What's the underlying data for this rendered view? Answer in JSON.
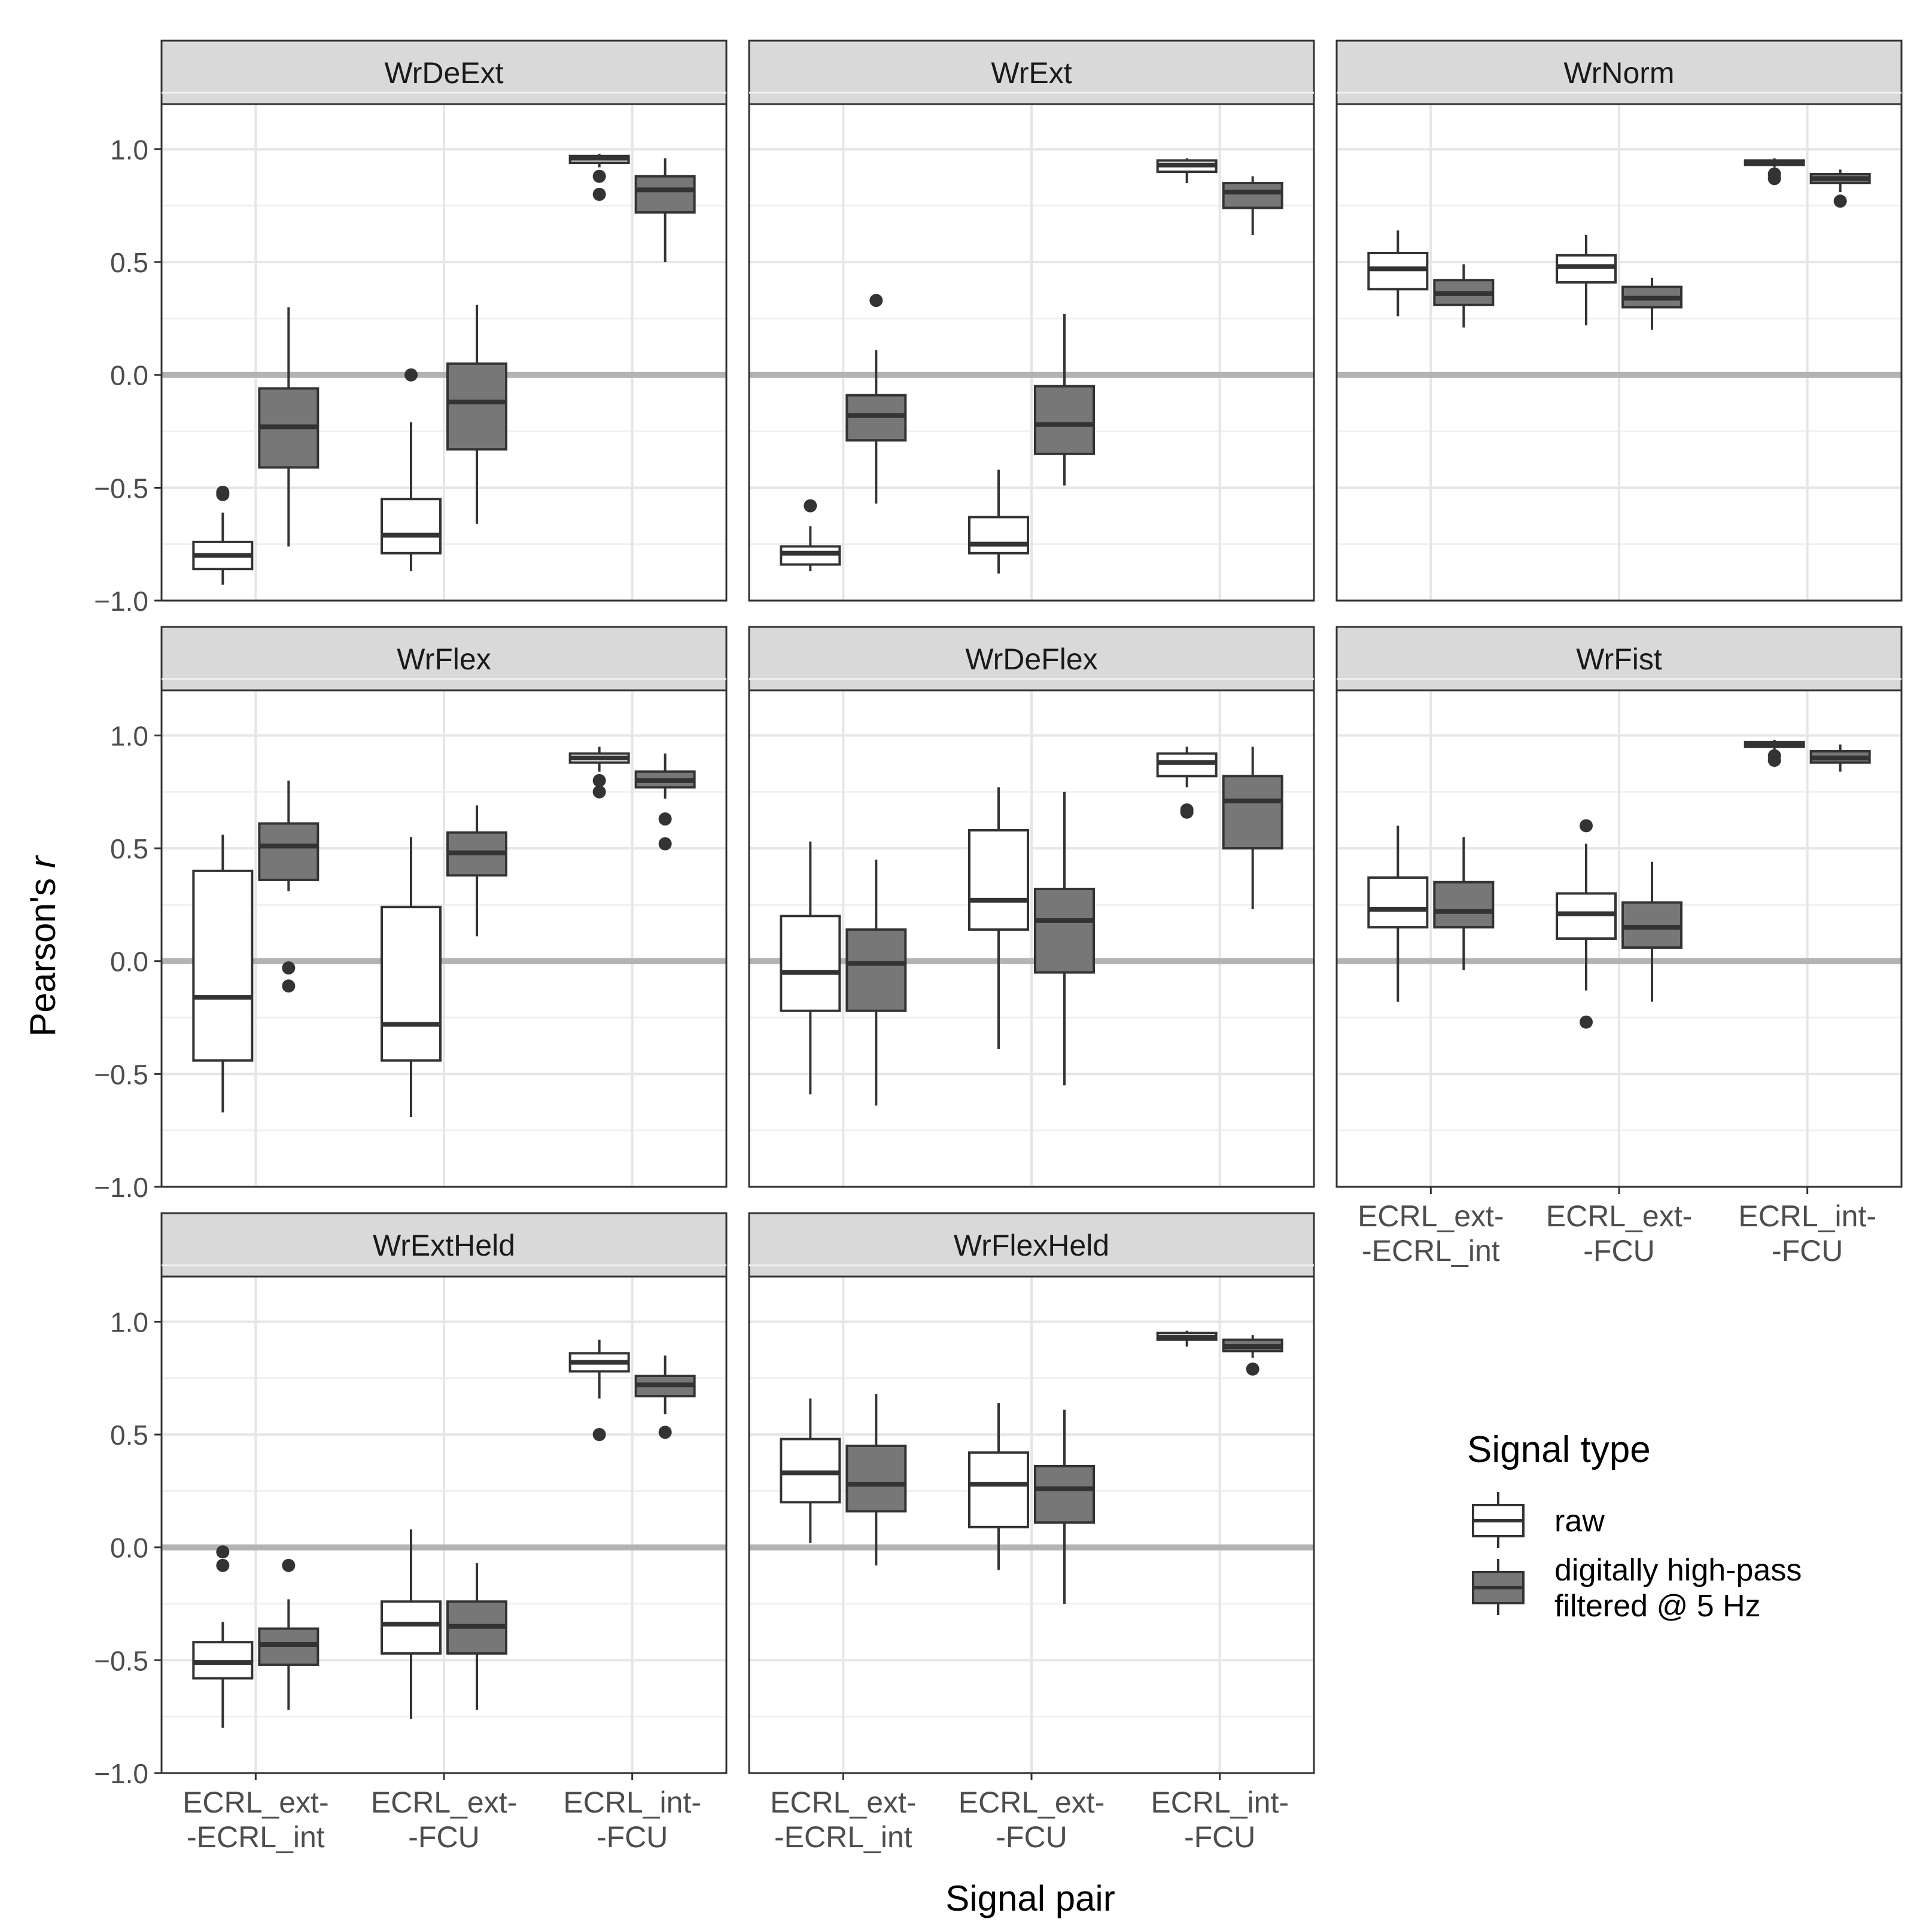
{
  "chart_data": {
    "type": "boxplot",
    "facet_layout": "3 columns x 3 rows, panels filled row by row",
    "x_label": "Signal pair",
    "y_label_prefix": "Pearson's ",
    "y_label_italic": "r",
    "ylim": [
      -1.0,
      1.2
    ],
    "y_ticks": [
      "1.0",
      "0.5",
      "0.0",
      "−0.5",
      "−1.0"
    ],
    "y_tick_values": [
      1.0,
      0.5,
      0.0,
      -0.5,
      -1.0
    ],
    "reference_line": 0.0,
    "categories": [
      {
        "line1": "ECRL_ext-",
        "line2": "-ECRL_int"
      },
      {
        "line1": "ECRL_ext-",
        "line2": "-FCU"
      },
      {
        "line1": "ECRL_int-",
        "line2": "-FCU"
      }
    ],
    "legend": {
      "title": "Signal type",
      "position": "bottom-right",
      "items": [
        {
          "key": "raw",
          "line1": "raw",
          "line2": "",
          "color": "#ffffff"
        },
        {
          "key": "filtered",
          "line1": "digitally high-pass",
          "line2": "filtered @ 5 Hz",
          "color": "#777777"
        }
      ]
    },
    "panels": [
      {
        "title": "WrDeExt",
        "boxes": [
          {
            "cat": 0,
            "sig": "raw",
            "wlo": -0.93,
            "q1": -0.86,
            "med": -0.8,
            "q3": -0.74,
            "whi": -0.61,
            "out": [
              -0.52,
              -0.53
            ]
          },
          {
            "cat": 0,
            "sig": "filtered",
            "wlo": -0.76,
            "q1": -0.41,
            "med": -0.23,
            "q3": -0.06,
            "whi": 0.3,
            "out": []
          },
          {
            "cat": 1,
            "sig": "raw",
            "wlo": -0.87,
            "q1": -0.79,
            "med": -0.71,
            "q3": -0.55,
            "whi": -0.21,
            "out": [
              0.0
            ]
          },
          {
            "cat": 1,
            "sig": "filtered",
            "wlo": -0.66,
            "q1": -0.33,
            "med": -0.12,
            "q3": 0.05,
            "whi": 0.31,
            "out": []
          },
          {
            "cat": 2,
            "sig": "raw",
            "wlo": 0.92,
            "q1": 0.94,
            "med": 0.96,
            "q3": 0.97,
            "whi": 0.98,
            "out": [
              0.88,
              0.8
            ]
          },
          {
            "cat": 2,
            "sig": "filtered",
            "wlo": 0.5,
            "q1": 0.72,
            "med": 0.82,
            "q3": 0.88,
            "whi": 0.96,
            "out": []
          }
        ]
      },
      {
        "title": "WrExt",
        "boxes": [
          {
            "cat": 0,
            "sig": "raw",
            "wlo": -0.87,
            "q1": -0.84,
            "med": -0.79,
            "q3": -0.76,
            "whi": -0.67,
            "out": [
              -0.58
            ]
          },
          {
            "cat": 0,
            "sig": "filtered",
            "wlo": -0.57,
            "q1": -0.29,
            "med": -0.18,
            "q3": -0.09,
            "whi": 0.11,
            "out": [
              0.33
            ]
          },
          {
            "cat": 1,
            "sig": "raw",
            "wlo": -0.88,
            "q1": -0.79,
            "med": -0.75,
            "q3": -0.63,
            "whi": -0.42,
            "out": []
          },
          {
            "cat": 1,
            "sig": "filtered",
            "wlo": -0.49,
            "q1": -0.35,
            "med": -0.22,
            "q3": -0.05,
            "whi": 0.27,
            "out": []
          },
          {
            "cat": 2,
            "sig": "raw",
            "wlo": 0.85,
            "q1": 0.9,
            "med": 0.93,
            "q3": 0.95,
            "whi": 0.96,
            "out": []
          },
          {
            "cat": 2,
            "sig": "filtered",
            "wlo": 0.62,
            "q1": 0.74,
            "med": 0.81,
            "q3": 0.85,
            "whi": 0.88,
            "out": []
          }
        ]
      },
      {
        "title": "WrNorm",
        "boxes": [
          {
            "cat": 0,
            "sig": "raw",
            "wlo": 0.26,
            "q1": 0.38,
            "med": 0.47,
            "q3": 0.54,
            "whi": 0.64,
            "out": []
          },
          {
            "cat": 0,
            "sig": "filtered",
            "wlo": 0.21,
            "q1": 0.31,
            "med": 0.36,
            "q3": 0.42,
            "whi": 0.49,
            "out": []
          },
          {
            "cat": 1,
            "sig": "raw",
            "wlo": 0.22,
            "q1": 0.41,
            "med": 0.48,
            "q3": 0.53,
            "whi": 0.62,
            "out": []
          },
          {
            "cat": 1,
            "sig": "filtered",
            "wlo": 0.2,
            "q1": 0.3,
            "med": 0.34,
            "q3": 0.39,
            "whi": 0.43,
            "out": []
          },
          {
            "cat": 2,
            "sig": "raw",
            "wlo": 0.92,
            "q1": 0.93,
            "med": 0.94,
            "q3": 0.95,
            "whi": 0.96,
            "out": [
              0.89,
              0.87
            ]
          },
          {
            "cat": 2,
            "sig": "filtered",
            "wlo": 0.81,
            "q1": 0.85,
            "med": 0.87,
            "q3": 0.89,
            "whi": 0.91,
            "out": [
              0.77
            ]
          }
        ]
      },
      {
        "title": "WrFlex",
        "boxes": [
          {
            "cat": 0,
            "sig": "raw",
            "wlo": -0.67,
            "q1": -0.44,
            "med": -0.16,
            "q3": 0.4,
            "whi": 0.56,
            "out": []
          },
          {
            "cat": 0,
            "sig": "filtered",
            "wlo": 0.31,
            "q1": 0.36,
            "med": 0.51,
            "q3": 0.61,
            "whi": 0.8,
            "out": [
              -0.03,
              -0.11
            ]
          },
          {
            "cat": 1,
            "sig": "raw",
            "wlo": -0.69,
            "q1": -0.44,
            "med": -0.28,
            "q3": 0.24,
            "whi": 0.55,
            "out": []
          },
          {
            "cat": 1,
            "sig": "filtered",
            "wlo": 0.11,
            "q1": 0.38,
            "med": 0.48,
            "q3": 0.57,
            "whi": 0.69,
            "out": []
          },
          {
            "cat": 2,
            "sig": "raw",
            "wlo": 0.84,
            "q1": 0.88,
            "med": 0.9,
            "q3": 0.92,
            "whi": 0.95,
            "out": [
              0.8,
              0.75
            ]
          },
          {
            "cat": 2,
            "sig": "filtered",
            "wlo": 0.72,
            "q1": 0.77,
            "med": 0.8,
            "q3": 0.84,
            "whi": 0.92,
            "out": [
              0.63,
              0.52
            ]
          }
        ]
      },
      {
        "title": "WrDeFlex",
        "boxes": [
          {
            "cat": 0,
            "sig": "raw",
            "wlo": -0.59,
            "q1": -0.22,
            "med": -0.05,
            "q3": 0.2,
            "whi": 0.53,
            "out": []
          },
          {
            "cat": 0,
            "sig": "filtered",
            "wlo": -0.64,
            "q1": -0.22,
            "med": -0.01,
            "q3": 0.14,
            "whi": 0.45,
            "out": []
          },
          {
            "cat": 1,
            "sig": "raw",
            "wlo": -0.39,
            "q1": 0.14,
            "med": 0.27,
            "q3": 0.58,
            "whi": 0.77,
            "out": []
          },
          {
            "cat": 1,
            "sig": "filtered",
            "wlo": -0.55,
            "q1": -0.05,
            "med": 0.18,
            "q3": 0.32,
            "whi": 0.75,
            "out": []
          },
          {
            "cat": 2,
            "sig": "raw",
            "wlo": 0.77,
            "q1": 0.82,
            "med": 0.88,
            "q3": 0.92,
            "whi": 0.95,
            "out": [
              0.66,
              0.67
            ]
          },
          {
            "cat": 2,
            "sig": "filtered",
            "wlo": 0.23,
            "q1": 0.5,
            "med": 0.71,
            "q3": 0.82,
            "whi": 0.95,
            "out": []
          }
        ]
      },
      {
        "title": "WrFist",
        "boxes": [
          {
            "cat": 0,
            "sig": "raw",
            "wlo": -0.18,
            "q1": 0.15,
            "med": 0.23,
            "q3": 0.37,
            "whi": 0.6,
            "out": []
          },
          {
            "cat": 0,
            "sig": "filtered",
            "wlo": -0.04,
            "q1": 0.15,
            "med": 0.22,
            "q3": 0.35,
            "whi": 0.55,
            "out": []
          },
          {
            "cat": 1,
            "sig": "raw",
            "wlo": -0.13,
            "q1": 0.1,
            "med": 0.21,
            "q3": 0.3,
            "whi": 0.52,
            "out": [
              0.6,
              -0.27
            ]
          },
          {
            "cat": 1,
            "sig": "filtered",
            "wlo": -0.18,
            "q1": 0.06,
            "med": 0.15,
            "q3": 0.26,
            "whi": 0.44,
            "out": []
          },
          {
            "cat": 2,
            "sig": "raw",
            "wlo": 0.93,
            "q1": 0.95,
            "med": 0.96,
            "q3": 0.97,
            "whi": 0.98,
            "out": [
              0.91,
              0.89
            ]
          },
          {
            "cat": 2,
            "sig": "filtered",
            "wlo": 0.84,
            "q1": 0.88,
            "med": 0.9,
            "q3": 0.93,
            "whi": 0.96,
            "out": []
          }
        ]
      },
      {
        "title": "WrExtHeld",
        "boxes": [
          {
            "cat": 0,
            "sig": "raw",
            "wlo": -0.8,
            "q1": -0.58,
            "med": -0.51,
            "q3": -0.42,
            "whi": -0.33,
            "out": [
              -0.02,
              -0.08
            ]
          },
          {
            "cat": 0,
            "sig": "filtered",
            "wlo": -0.72,
            "q1": -0.52,
            "med": -0.43,
            "q3": -0.36,
            "whi": -0.23,
            "out": [
              -0.08
            ]
          },
          {
            "cat": 1,
            "sig": "raw",
            "wlo": -0.76,
            "q1": -0.47,
            "med": -0.34,
            "q3": -0.24,
            "whi": 0.08,
            "out": []
          },
          {
            "cat": 1,
            "sig": "filtered",
            "wlo": -0.72,
            "q1": -0.47,
            "med": -0.35,
            "q3": -0.24,
            "whi": -0.07,
            "out": []
          },
          {
            "cat": 2,
            "sig": "raw",
            "wlo": 0.66,
            "q1": 0.78,
            "med": 0.82,
            "q3": 0.86,
            "whi": 0.92,
            "out": [
              0.5
            ]
          },
          {
            "cat": 2,
            "sig": "filtered",
            "wlo": 0.59,
            "q1": 0.67,
            "med": 0.72,
            "q3": 0.76,
            "whi": 0.85,
            "out": [
              0.51
            ]
          }
        ]
      },
      {
        "title": "WrFlexHeld",
        "boxes": [
          {
            "cat": 0,
            "sig": "raw",
            "wlo": 0.02,
            "q1": 0.2,
            "med": 0.33,
            "q3": 0.48,
            "whi": 0.66,
            "out": []
          },
          {
            "cat": 0,
            "sig": "filtered",
            "wlo": -0.08,
            "q1": 0.16,
            "med": 0.28,
            "q3": 0.45,
            "whi": 0.68,
            "out": []
          },
          {
            "cat": 1,
            "sig": "raw",
            "wlo": -0.1,
            "q1": 0.09,
            "med": 0.28,
            "q3": 0.42,
            "whi": 0.64,
            "out": []
          },
          {
            "cat": 1,
            "sig": "filtered",
            "wlo": -0.25,
            "q1": 0.11,
            "med": 0.26,
            "q3": 0.36,
            "whi": 0.61,
            "out": []
          },
          {
            "cat": 2,
            "sig": "raw",
            "wlo": 0.89,
            "q1": 0.92,
            "med": 0.93,
            "q3": 0.95,
            "whi": 0.96,
            "out": []
          },
          {
            "cat": 2,
            "sig": "filtered",
            "wlo": 0.84,
            "q1": 0.87,
            "med": 0.89,
            "q3": 0.92,
            "whi": 0.94,
            "out": [
              0.79
            ]
          }
        ]
      }
    ]
  }
}
